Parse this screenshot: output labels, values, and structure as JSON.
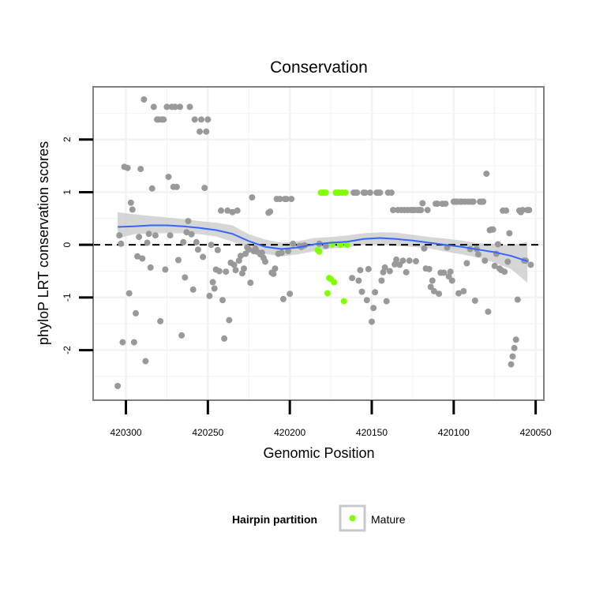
{
  "chart_data": {
    "type": "scatter",
    "title": "Conservation",
    "xlabel": "Genomic Position",
    "ylabel": "phyloP LRT conservation scores",
    "x_reversed": true,
    "xlim": [
      420320,
      420045
    ],
    "ylim": [
      -2.95,
      3.0
    ],
    "x_ticks": [
      420300,
      420250,
      420200,
      420150,
      420100,
      420050
    ],
    "x_tick_labels": [
      "420300",
      "420250",
      "420200",
      "420150",
      "420100",
      "420050"
    ],
    "y_ticks": [
      2,
      1,
      0,
      -1,
      -2
    ],
    "y_tick_labels": [
      "2",
      "1",
      "0",
      "-1",
      "-2"
    ],
    "grid": true,
    "reference_line": {
      "y": 0,
      "style": "dashed",
      "color": "#000000"
    },
    "legend": {
      "title": "Hairpin partition",
      "position": "bottom",
      "entries": [
        {
          "label": "Mature",
          "color": "#7fff00"
        }
      ]
    },
    "colors": {
      "points_default": "#999999",
      "points_mature": "#7fff00",
      "smooth_line": "#3366ff",
      "confidence_band": "#c8c8c8",
      "panel_border": "#7f7f7f",
      "grid": "#f2f2f2"
    },
    "series": [
      {
        "name": "",
        "color": "#999999",
        "points": [
          [
            420305,
            -2.68
          ],
          [
            420304,
            0.18
          ],
          [
            420303,
            0.02
          ],
          [
            420302,
            -1.85
          ],
          [
            420301,
            1.48
          ],
          [
            420299,
            1.46
          ],
          [
            420298,
            -0.92
          ],
          [
            420297,
            0.8
          ],
          [
            420296,
            0.67
          ],
          [
            420295,
            -1.85
          ],
          [
            420294,
            -1.3
          ],
          [
            420293,
            -0.22
          ],
          [
            420292,
            0.15
          ],
          [
            420291,
            1.44
          ],
          [
            420290,
            -0.26
          ],
          [
            420289,
            2.76
          ],
          [
            420288,
            -2.21
          ],
          [
            420287,
            0.04
          ],
          [
            420286,
            0.21
          ],
          [
            420285,
            -0.43
          ],
          [
            420284,
            1.07
          ],
          [
            420283,
            2.62
          ],
          [
            420282,
            0.18
          ],
          [
            420281,
            2.38
          ],
          [
            420280,
            2.38
          ],
          [
            420279,
            -1.45
          ],
          [
            420278,
            2.38
          ],
          [
            420277,
            2.38
          ],
          [
            420276,
            -0.47
          ],
          [
            420275,
            2.62
          ],
          [
            420274,
            1.29
          ],
          [
            420273,
            0.18
          ],
          [
            420272,
            2.62
          ],
          [
            420271,
            1.1
          ],
          [
            420270,
            2.62
          ],
          [
            420269,
            1.1
          ],
          [
            420268,
            -0.29
          ],
          [
            420267,
            2.62
          ],
          [
            420266,
            -1.72
          ],
          [
            420265,
            0.05
          ],
          [
            420264,
            -0.62
          ],
          [
            420263,
            0.24
          ],
          [
            420262,
            0.45
          ],
          [
            420261,
            2.62
          ],
          [
            420260,
            0.2
          ],
          [
            420259,
            -0.85
          ],
          [
            420258,
            2.38
          ],
          [
            420257,
            0.05
          ],
          [
            420256,
            -0.09
          ],
          [
            420255,
            2.15
          ],
          [
            420254,
            2.38
          ],
          [
            420253,
            -0.23
          ],
          [
            420252,
            1.08
          ],
          [
            420251,
            2.15
          ],
          [
            420250,
            2.38
          ],
          [
            420249,
            -0.97
          ],
          [
            420248,
            0.0
          ],
          [
            420247,
            -0.71
          ],
          [
            420246,
            -0.83
          ],
          [
            420245,
            -0.47
          ],
          [
            420244,
            -0.1
          ],
          [
            420243,
            -0.5
          ],
          [
            420242,
            0.65
          ],
          [
            420241,
            -1.05
          ],
          [
            420240,
            -1.78
          ],
          [
            420239,
            -0.51
          ],
          [
            420238,
            0.65
          ],
          [
            420237,
            -1.43
          ],
          [
            420236,
            -0.34
          ],
          [
            420235,
            0.62
          ],
          [
            420234,
            -0.38
          ],
          [
            420233,
            -0.48
          ],
          [
            420232,
            0.65
          ],
          [
            420231,
            -0.3
          ],
          [
            420230,
            -0.21
          ],
          [
            420229,
            -0.54
          ],
          [
            420228,
            -0.45
          ],
          [
            420227,
            -0.17
          ],
          [
            420226,
            -0.05
          ],
          [
            420225,
            -0.09
          ],
          [
            420224,
            -0.72
          ],
          [
            420223,
            0.9
          ],
          [
            420222,
            -0.12
          ],
          [
            420221,
            -0.07
          ],
          [
            420220,
            -0.13
          ],
          [
            420218,
            -0.18
          ],
          [
            420217,
            -0.15
          ],
          [
            420216,
            -0.25
          ],
          [
            420215,
            -0.32
          ],
          [
            420213,
            0.61
          ],
          [
            420212,
            0.63
          ],
          [
            420211,
            -0.53
          ],
          [
            420210,
            -0.55
          ],
          [
            420209,
            -0.45
          ],
          [
            420208,
            0.87
          ],
          [
            420207,
            -0.17
          ],
          [
            420206,
            0.87
          ],
          [
            420205,
            -0.15
          ],
          [
            420204,
            -1.03
          ],
          [
            420203,
            0.87
          ],
          [
            420202,
            0.87
          ],
          [
            420201,
            -0.12
          ],
          [
            420200,
            -0.93
          ],
          [
            420199,
            0.87
          ],
          [
            420198,
            0.02
          ],
          [
            420194,
            -0.02
          ],
          [
            420193,
            -0.04
          ],
          [
            420192,
            -0.02
          ],
          [
            420191,
            -0.01
          ],
          [
            420182,
            0.02
          ],
          [
            420178,
            -0.02
          ],
          [
            420162,
            -0.63
          ],
          [
            420161,
            0.99
          ],
          [
            420160,
            0.99
          ],
          [
            420159,
            0.99
          ],
          [
            420158,
            -0.68
          ],
          [
            420157,
            -0.48
          ],
          [
            420156,
            -0.89
          ],
          [
            420155,
            0.99
          ],
          [
            420154,
            0.99
          ],
          [
            420153,
            -1.05
          ],
          [
            420152,
            -0.46
          ],
          [
            420151,
            0.99
          ],
          [
            420150,
            -1.46
          ],
          [
            420149,
            -1.2
          ],
          [
            420148,
            -0.9
          ],
          [
            420147,
            0.99
          ],
          [
            420146,
            0.99
          ],
          [
            420145,
            0.99
          ],
          [
            420144,
            -0.68
          ],
          [
            420143,
            -0.52
          ],
          [
            420142,
            -0.43
          ],
          [
            420141,
            -1.07
          ],
          [
            420140,
            0.99
          ],
          [
            420139,
            -0.5
          ],
          [
            420138,
            0.99
          ],
          [
            420137,
            0.66
          ],
          [
            420136,
            -0.37
          ],
          [
            420135,
            -0.28
          ],
          [
            420134,
            0.66
          ],
          [
            420133,
            -0.38
          ],
          [
            420132,
            0.66
          ],
          [
            420131,
            -0.3
          ],
          [
            420130,
            0.66
          ],
          [
            420129,
            -0.52
          ],
          [
            420128,
            0.66
          ],
          [
            420127,
            -0.3
          ],
          [
            420126,
            0.66
          ],
          [
            420125,
            0.66
          ],
          [
            420124,
            0.66
          ],
          [
            420123,
            -0.31
          ],
          [
            420122,
            0.66
          ],
          [
            420121,
            0.66
          ],
          [
            420120,
            0.66
          ],
          [
            420119,
            0.79
          ],
          [
            420118,
            -0.07
          ],
          [
            420117,
            -0.45
          ],
          [
            420116,
            0.66
          ],
          [
            420115,
            -0.46
          ],
          [
            420114,
            -0.8
          ],
          [
            420113,
            -0.68
          ],
          [
            420112,
            -0.88
          ],
          [
            420111,
            0.78
          ],
          [
            420110,
            0.78
          ],
          [
            420109,
            -0.93
          ],
          [
            420108,
            -0.53
          ],
          [
            420107,
            0.78
          ],
          [
            420106,
            -0.53
          ],
          [
            420105,
            0.78
          ],
          [
            420104,
            -0.05
          ],
          [
            420103,
            -0.6
          ],
          [
            420102,
            -0.51
          ],
          [
            420101,
            -0.68
          ],
          [
            420100,
            0.82
          ],
          [
            420099,
            0.82
          ],
          [
            420098,
            0.82
          ],
          [
            420097,
            -0.92
          ],
          [
            420096,
            0.82
          ],
          [
            420095,
            0.82
          ],
          [
            420094,
            -0.88
          ],
          [
            420093,
            0.82
          ],
          [
            420092,
            -0.35
          ],
          [
            420091,
            0.82
          ],
          [
            420090,
            -0.08
          ],
          [
            420089,
            0.82
          ],
          [
            420088,
            0.82
          ],
          [
            420087,
            -1.06
          ],
          [
            420086,
            -0.08
          ],
          [
            420085,
            -0.18
          ],
          [
            420084,
            0.82
          ],
          [
            420083,
            0.82
          ],
          [
            420082,
            0.82
          ],
          [
            420081,
            -0.3
          ],
          [
            420080,
            1.35
          ],
          [
            420079,
            -1.27
          ],
          [
            420078,
            0.28
          ],
          [
            420077,
            0.29
          ],
          [
            420076,
            0.29
          ],
          [
            420075,
            -0.4
          ],
          [
            420074,
            -0.17
          ],
          [
            420073,
            0.01
          ],
          [
            420072,
            -0.45
          ],
          [
            420071,
            -0.48
          ],
          [
            420070,
            0.65
          ],
          [
            420069,
            -0.51
          ],
          [
            420068,
            0.65
          ],
          [
            420067,
            -0.32
          ],
          [
            420066,
            0.22
          ],
          [
            420065,
            -2.27
          ],
          [
            420064,
            -2.12
          ],
          [
            420063,
            -1.96
          ],
          [
            420062,
            -1.8
          ],
          [
            420061,
            -1.04
          ],
          [
            420060,
            0.65
          ],
          [
            420059,
            0.62
          ],
          [
            420058,
            0.66
          ],
          [
            420057,
            -0.3
          ],
          [
            420056,
            -0.3
          ],
          [
            420055,
            0.66
          ],
          [
            420054,
            0.66
          ],
          [
            420053,
            -0.38
          ]
        ]
      },
      {
        "name": "Mature",
        "color": "#7fff00",
        "points": [
          [
            420183,
            -0.1
          ],
          [
            420182,
            -0.13
          ],
          [
            420181,
            0.99
          ],
          [
            420180,
            0.99
          ],
          [
            420179,
            0.99
          ],
          [
            420178,
            0.99
          ],
          [
            420177,
            -0.92
          ],
          [
            420176,
            -0.63
          ],
          [
            420175,
            -0.65
          ],
          [
            420174,
            0.01
          ],
          [
            420173,
            -0.71
          ],
          [
            420172,
            0.99
          ],
          [
            420171,
            0.99
          ],
          [
            420170,
            0.99
          ],
          [
            420169,
            0.0
          ],
          [
            420168,
            0.99
          ],
          [
            420167,
            -1.07
          ],
          [
            420166,
            0.99
          ],
          [
            420165,
            0.0
          ]
        ]
      }
    ],
    "smooth": {
      "color": "#3366ff",
      "x": [
        420305,
        420295,
        420285,
        420275,
        420265,
        420255,
        420245,
        420235,
        420225,
        420215,
        420205,
        420195,
        420185,
        420175,
        420165,
        420155,
        420145,
        420135,
        420125,
        420115,
        420105,
        420095,
        420085,
        420075,
        420065,
        420055
      ],
      "y": [
        0.34,
        0.35,
        0.37,
        0.37,
        0.35,
        0.32,
        0.28,
        0.21,
        0.07,
        -0.04,
        -0.08,
        -0.05,
        0.01,
        0.04,
        0.06,
        0.11,
        0.13,
        0.11,
        0.08,
        0.04,
        0.0,
        -0.04,
        -0.09,
        -0.14,
        -0.21,
        -0.31
      ],
      "lower": [
        0.12,
        0.2,
        0.22,
        0.22,
        0.22,
        0.2,
        0.16,
        0.06,
        -0.05,
        -0.17,
        -0.22,
        -0.18,
        -0.12,
        -0.07,
        -0.05,
        0.0,
        0.01,
        -0.02,
        -0.04,
        -0.07,
        -0.13,
        -0.18,
        -0.24,
        -0.34,
        -0.46,
        -0.72
      ],
      "upper": [
        0.62,
        0.58,
        0.55,
        0.52,
        0.49,
        0.45,
        0.42,
        0.37,
        0.2,
        0.1,
        0.04,
        0.07,
        0.13,
        0.15,
        0.18,
        0.22,
        0.24,
        0.23,
        0.19,
        0.15,
        0.12,
        0.08,
        0.03,
        0.02,
        -0.01,
        0.06
      ]
    }
  }
}
